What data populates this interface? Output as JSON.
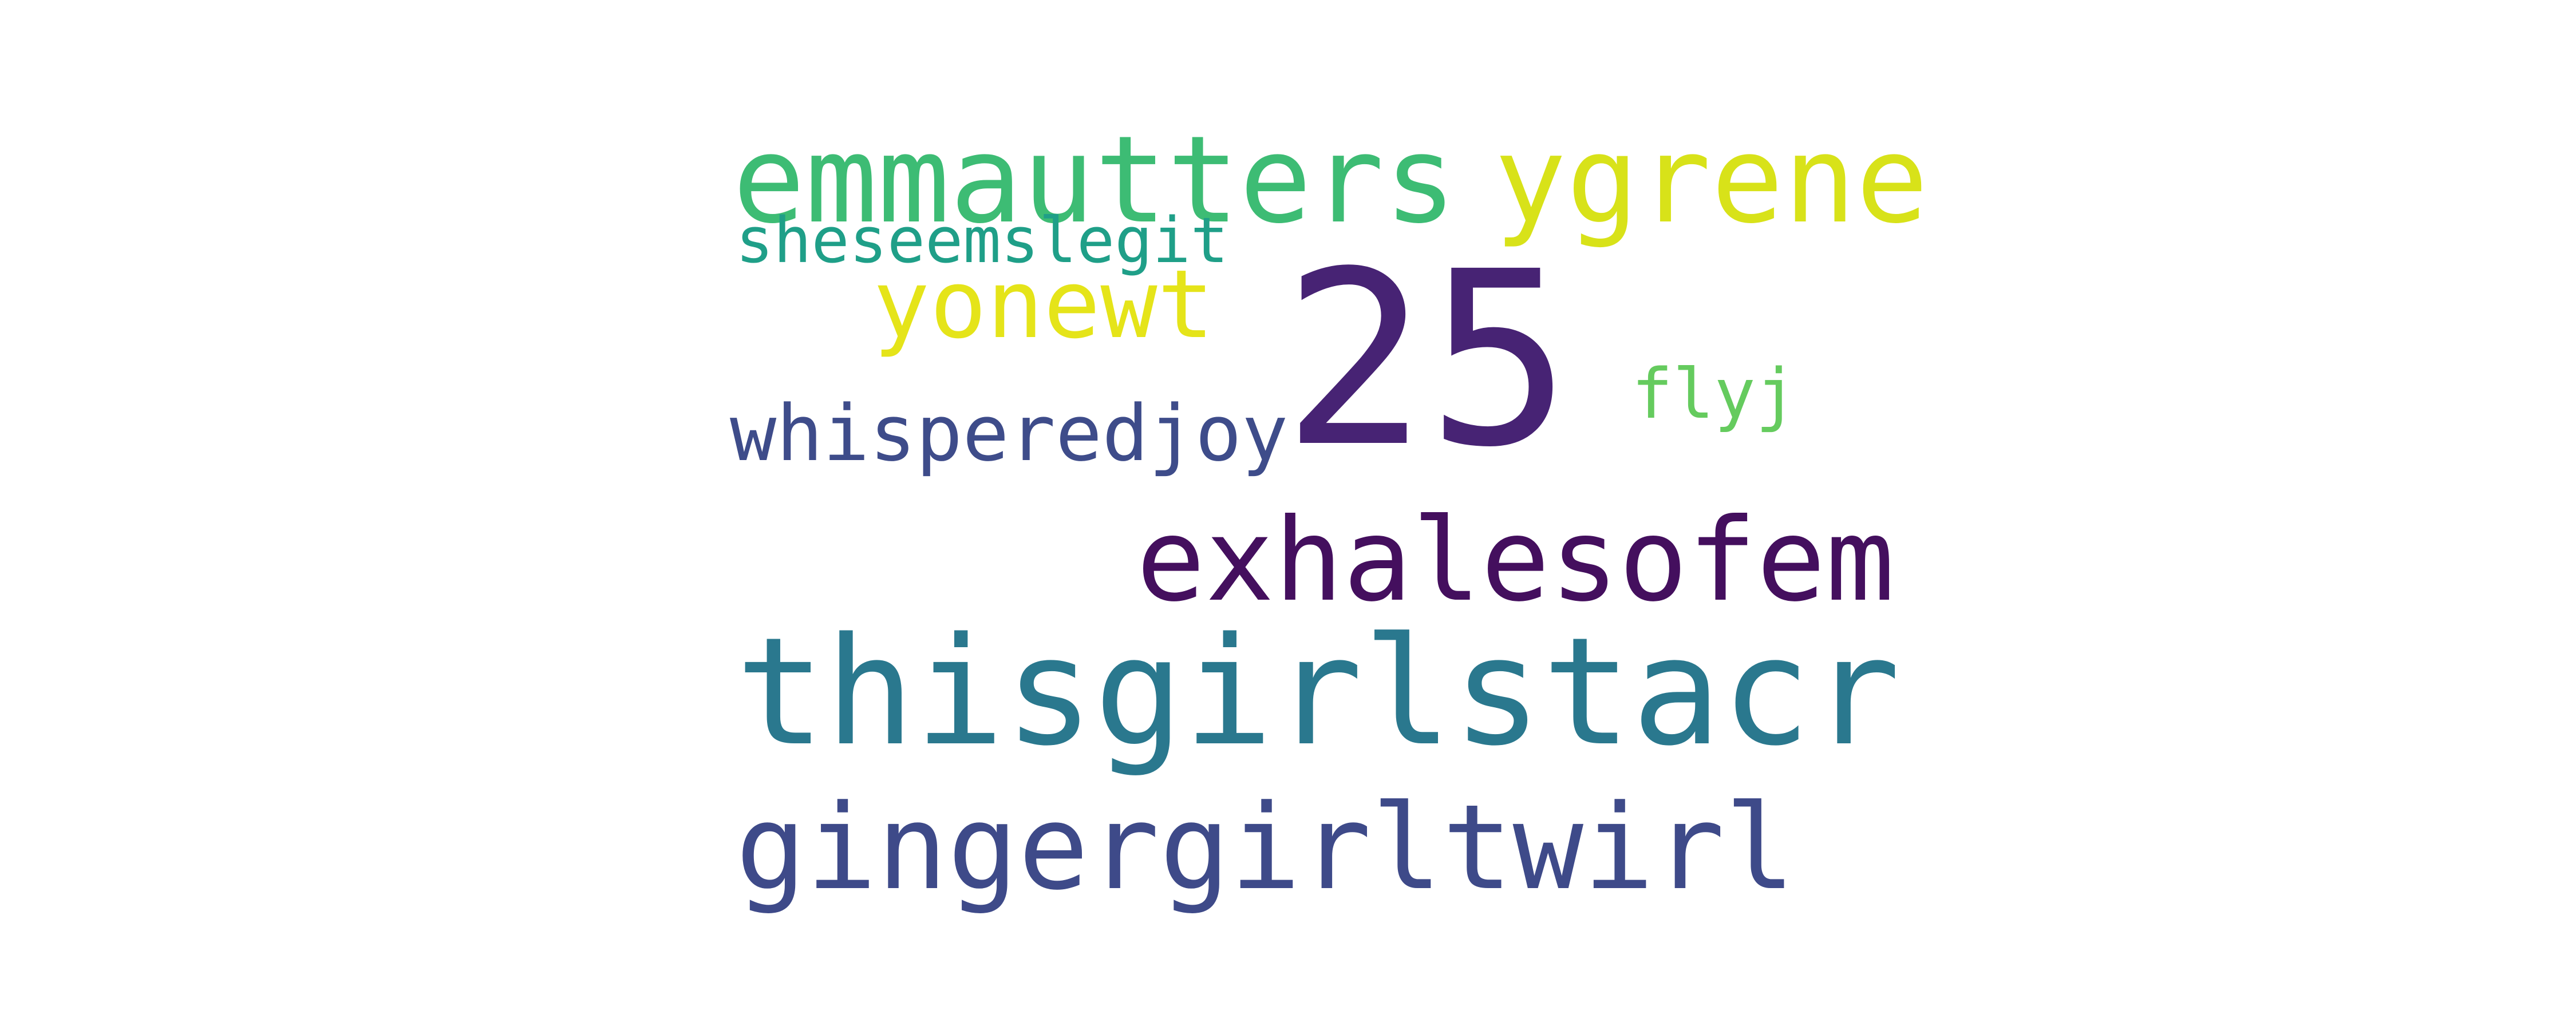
{
  "words": [
    {
      "text": "emmautters",
      "color": "#3dbc74"
    },
    {
      "text": "ygrene",
      "color": "#d8e219"
    },
    {
      "text": "sheseemslegit",
      "color": "#1f9f88"
    },
    {
      "text": "yonewt",
      "color": "#e5e419"
    },
    {
      "text": "25",
      "color": "#472374"
    },
    {
      "text": "flyj",
      "color": "#65cb5e"
    },
    {
      "text": "whisperedjoy",
      "color": "#3e4c8a"
    },
    {
      "text": "exhalesofem",
      "color": "#440f5e"
    },
    {
      "text": "thisgirlstacr",
      "color": "#2a788e"
    },
    {
      "text": "gingergirltwirl",
      "color": "#3e4a89"
    }
  ]
}
